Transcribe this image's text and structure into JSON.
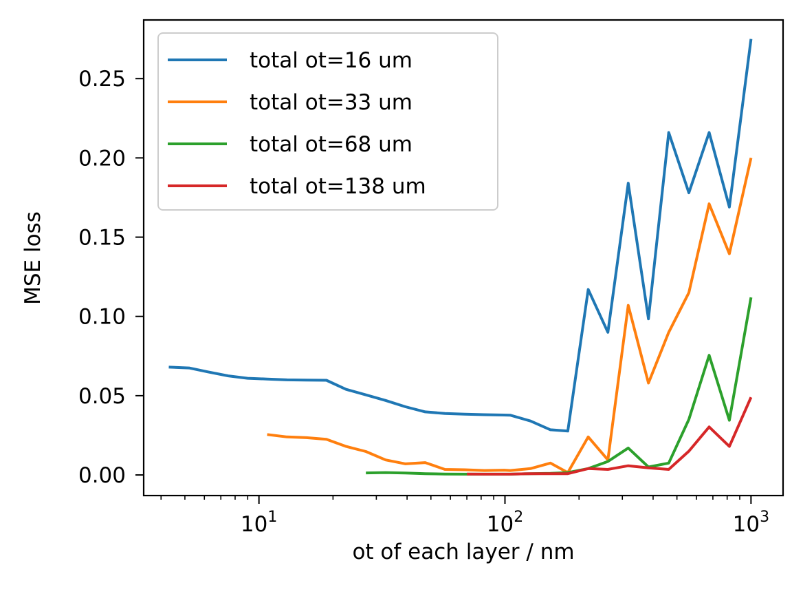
{
  "chart_data": {
    "type": "line",
    "xlabel": "ot of each layer / nm",
    "ylabel": "MSE loss",
    "xscale": "log",
    "xlim": [
      3.4,
      1350
    ],
    "ylim": [
      -0.013,
      0.287
    ],
    "xticks": [
      {
        "value": 10,
        "base": "10",
        "exp": "1"
      },
      {
        "value": 100,
        "base": "10",
        "exp": "2"
      },
      {
        "value": 1000,
        "base": "10",
        "exp": "3"
      }
    ],
    "yticks": [
      {
        "value": 0.0,
        "label": "0.00"
      },
      {
        "value": 0.05,
        "label": "0.05"
      },
      {
        "value": 0.1,
        "label": "0.10"
      },
      {
        "value": 0.15,
        "label": "0.15"
      },
      {
        "value": 0.2,
        "label": "0.20"
      },
      {
        "value": 0.25,
        "label": "0.25"
      }
    ],
    "grid": false,
    "legend_position": "upper-left",
    "series": [
      {
        "name": "total ot=16 um",
        "color": "#1f77b4",
        "points": [
          [
            4.3,
            0.068
          ],
          [
            5.2,
            0.0675
          ],
          [
            6.2,
            0.065
          ],
          [
            7.5,
            0.0625
          ],
          [
            9.0,
            0.061
          ],
          [
            10.8,
            0.0605
          ],
          [
            13.0,
            0.06
          ],
          [
            15.6,
            0.0598
          ],
          [
            18.8,
            0.0597
          ],
          [
            22.6,
            0.054
          ],
          [
            27.2,
            0.0505
          ],
          [
            32.7,
            0.047
          ],
          [
            39.4,
            0.043
          ],
          [
            47.4,
            0.0398
          ],
          [
            57.0,
            0.0388
          ],
          [
            68.6,
            0.0383
          ],
          [
            82.5,
            0.038
          ],
          [
            99.3,
            0.0378
          ],
          [
            105,
            0.0377
          ],
          [
            127,
            0.034
          ],
          [
            153,
            0.0285
          ],
          [
            180,
            0.0277
          ],
          [
            218,
            0.117
          ],
          [
            262,
            0.09
          ],
          [
            317,
            0.184
          ],
          [
            383,
            0.0985
          ],
          [
            463,
            0.216
          ],
          [
            559,
            0.178
          ],
          [
            676,
            0.216
          ],
          [
            817,
            0.169
          ],
          [
            1000,
            0.275
          ]
        ]
      },
      {
        "name": "total ot=33 um",
        "color": "#ff7f0e",
        "points": [
          [
            10.8,
            0.0255
          ],
          [
            13.0,
            0.024
          ],
          [
            15.6,
            0.0235
          ],
          [
            18.8,
            0.0225
          ],
          [
            22.6,
            0.018
          ],
          [
            27.2,
            0.0148
          ],
          [
            32.7,
            0.0095
          ],
          [
            39.4,
            0.007
          ],
          [
            47.4,
            0.0078
          ],
          [
            57.0,
            0.0035
          ],
          [
            68.6,
            0.0033
          ],
          [
            82.5,
            0.0028
          ],
          [
            99.3,
            0.003
          ],
          [
            105,
            0.0028
          ],
          [
            127,
            0.004
          ],
          [
            153,
            0.0075
          ],
          [
            180,
            0.0015
          ],
          [
            218,
            0.024
          ],
          [
            262,
            0.0095
          ],
          [
            317,
            0.107
          ],
          [
            383,
            0.058
          ],
          [
            463,
            0.09
          ],
          [
            559,
            0.115
          ],
          [
            676,
            0.171
          ],
          [
            817,
            0.1395
          ],
          [
            1000,
            0.2
          ]
        ]
      },
      {
        "name": "total ot=68 um",
        "color": "#2ca02c",
        "points": [
          [
            27.2,
            0.0013
          ],
          [
            32.7,
            0.0015
          ],
          [
            39.4,
            0.0012
          ],
          [
            47.4,
            0.0008
          ],
          [
            57.0,
            0.0006
          ],
          [
            68.6,
            0.0005
          ],
          [
            82.5,
            0.0005
          ],
          [
            99.3,
            0.0005
          ],
          [
            105,
            0.0005
          ],
          [
            127,
            0.0008
          ],
          [
            153,
            0.001
          ],
          [
            180,
            0.0015
          ],
          [
            218,
            0.004
          ],
          [
            262,
            0.0085
          ],
          [
            317,
            0.017
          ],
          [
            383,
            0.005
          ],
          [
            463,
            0.0075
          ],
          [
            559,
            0.035
          ],
          [
            676,
            0.0755
          ],
          [
            817,
            0.0345
          ],
          [
            1000,
            0.112
          ]
        ]
      },
      {
        "name": "total ot=138 um",
        "color": "#d62728",
        "points": [
          [
            70,
            0.0006
          ],
          [
            82.5,
            0.0005
          ],
          [
            99.3,
            0.0005
          ],
          [
            105,
            0.0005
          ],
          [
            127,
            0.0008
          ],
          [
            153,
            0.0008
          ],
          [
            180,
            0.0008
          ],
          [
            218,
            0.004
          ],
          [
            262,
            0.0035
          ],
          [
            317,
            0.0058
          ],
          [
            383,
            0.0045
          ],
          [
            463,
            0.0035
          ],
          [
            559,
            0.015
          ],
          [
            676,
            0.0303
          ],
          [
            817,
            0.018
          ],
          [
            1000,
            0.049
          ]
        ]
      }
    ]
  }
}
